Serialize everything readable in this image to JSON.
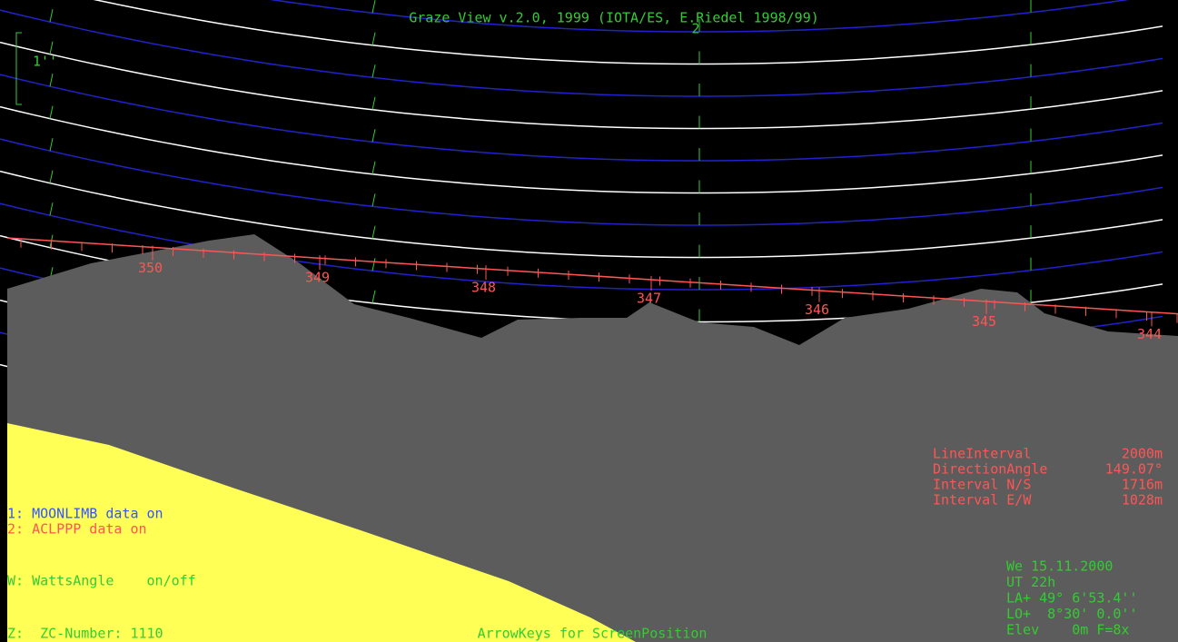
{
  "title": "Graze View v.2.0, 1999 (IOTA/ES, E.Riedel 1998/99)",
  "scale_label": "1''",
  "center_marker": "2",
  "limb_labels": [
    "350",
    "349",
    "348",
    "347",
    "346",
    "345",
    "344"
  ],
  "legend": [
    "1: MOONLIMB data on",
    "2: ACLPPP data on"
  ],
  "options": [
    "W: WattsAngle    on/off",
    "Z:  ZC-Number: 1110"
  ],
  "hint": "ArrowKeys for ScreenPosition",
  "parameters": [
    {
      "label": "LineInterval",
      "value": "2000m"
    },
    {
      "label": "DirectionAngle",
      "value": "149.07°"
    },
    {
      "label": "Interval N/S",
      "value": "1716m"
    },
    {
      "label": "Interval E/W",
      "value": "1028m"
    }
  ],
  "observer": [
    "We 15.11.2000",
    "UT 22h",
    "LA+ 49° 6'53.4''",
    "LO+  8°30' 0.0''",
    "Elev    0m F=8x"
  ]
}
